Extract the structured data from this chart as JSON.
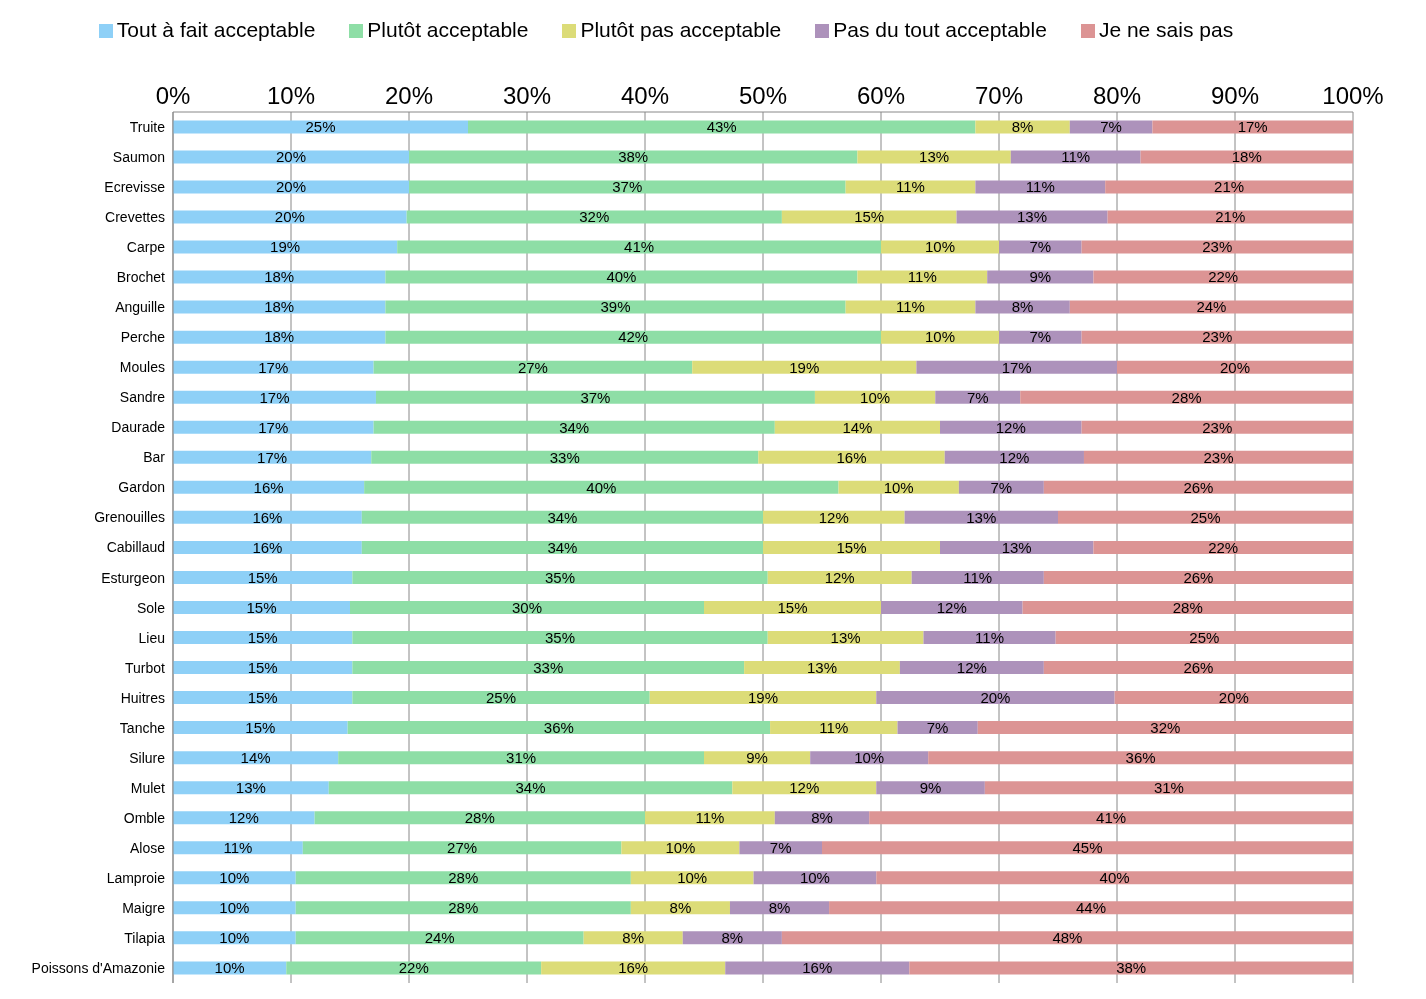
{
  "chart_data": {
    "type": "bar",
    "orientation": "horizontal",
    "stacked": true,
    "data_labels": false,
    "grid": "x",
    "legend": "top",
    "categories": [
      "Truite",
      "Saumon",
      "Ecrevisse",
      "Crevettes",
      "Carpe",
      "Brochet",
      "Anguille",
      "Perche",
      "Moules",
      "Sandre",
      "Daurade",
      "Bar",
      "Gardon",
      "Grenouilles",
      "Cabillaud",
      "Esturgeon",
      "Sole",
      "Lieu",
      "Turbot",
      "Huitres",
      "Tanche",
      "Silure",
      "Mulet",
      "Omble",
      "Alose",
      "Lamproie",
      "Maigre",
      "Tilapia",
      "Poissons d'Amazonie"
    ],
    "xlim": [
      0,
      100
    ],
    "xticks": [
      {
        "value": 0,
        "label": "0%"
      },
      {
        "value": 10,
        "label": "10%"
      },
      {
        "value": 20,
        "label": "20%"
      },
      {
        "value": 30,
        "label": "30%"
      },
      {
        "value": 40,
        "label": "40%"
      },
      {
        "value": 50,
        "label": "50%"
      },
      {
        "value": 60,
        "label": "60%"
      },
      {
        "value": 70,
        "label": "70%"
      },
      {
        "value": 80,
        "label": "80%"
      },
      {
        "value": 90,
        "label": "90%"
      },
      {
        "value": 100,
        "label": "100%"
      }
    ],
    "series": [
      {
        "name": "Tout à fait acceptable",
        "color": "#8ed0f7",
        "values": [
          25,
          20,
          20,
          19.8,
          19,
          18,
          18,
          18,
          17,
          17.2,
          17,
          16.8,
          16.2,
          16,
          16,
          15.2,
          15,
          15.2,
          15.2,
          15.2,
          14.8,
          14,
          13.2,
          12,
          11,
          10.4,
          10.4,
          10.4,
          9.6
        ],
        "value_labels": [
          "25%",
          "20%",
          "20%",
          "20%",
          "19%",
          "18%",
          "18%",
          "18%",
          "17%",
          "17%",
          "17%",
          "17%",
          "16%",
          "16%",
          "16%",
          "15%",
          "15%",
          "15%",
          "15%",
          "15%",
          "15%",
          "14%",
          "13%",
          "12%",
          "11%",
          "10%",
          "10%",
          "10%",
          "10%"
        ]
      },
      {
        "name": "Plutôt acceptable",
        "color": "#8edea6",
        "values": [
          43,
          38,
          37,
          31.8,
          41,
          40,
          39,
          42,
          27,
          37.2,
          34,
          32.8,
          40.2,
          34,
          34,
          35.2,
          30,
          35.2,
          33.2,
          25.2,
          35.8,
          31,
          34.2,
          28,
          27,
          28.4,
          28.4,
          24.4,
          21.6
        ],
        "value_labels": [
          "43%",
          "38%",
          "37%",
          "32%",
          "41%",
          "40%",
          "39%",
          "42%",
          "27%",
          "37%",
          "34%",
          "33%",
          "40%",
          "34%",
          "34%",
          "35%",
          "30%",
          "35%",
          "33%",
          "25%",
          "36%",
          "31%",
          "34%",
          "28%",
          "27%",
          "28%",
          "28%",
          "24%",
          "22%"
        ]
      },
      {
        "name": "Plutôt pas acceptable",
        "color": "#dcdc78",
        "values": [
          8,
          13,
          11,
          14.8,
          10,
          11,
          11,
          10,
          19,
          10.2,
          14,
          15.8,
          10.2,
          12,
          15,
          12.2,
          15,
          13.2,
          13.2,
          19.2,
          10.8,
          9,
          12.2,
          11,
          10,
          10.4,
          8.4,
          8.4,
          15.6
        ],
        "value_labels": [
          "8%",
          "13%",
          "11%",
          "15%",
          "10%",
          "11%",
          "11%",
          "10%",
          "19%",
          "10%",
          "14%",
          "16%",
          "10%",
          "12%",
          "15%",
          "12%",
          "15%",
          "13%",
          "13%",
          "19%",
          "11%",
          "9%",
          "12%",
          "11%",
          "10%",
          "10%",
          "8%",
          "8%",
          "16%"
        ]
      },
      {
        "name": "Pas du tout acceptable",
        "color": "#ad92bb",
        "values": [
          7,
          11,
          11,
          12.8,
          7,
          9,
          8,
          7,
          17,
          7.2,
          12,
          11.8,
          7.2,
          13,
          13,
          11.2,
          12,
          11.2,
          12.2,
          20.2,
          6.8,
          10,
          9.2,
          8,
          7,
          10.4,
          8.4,
          8.4,
          15.6
        ],
        "value_labels": [
          "7%",
          "11%",
          "11%",
          "13%",
          "7%",
          "9%",
          "8%",
          "7%",
          "17%",
          "7%",
          "12%",
          "12%",
          "7%",
          "13%",
          "13%",
          "11%",
          "12%",
          "11%",
          "12%",
          "20%",
          "7%",
          "10%",
          "9%",
          "8%",
          "7%",
          "10%",
          "8%",
          "8%",
          "16%"
        ]
      },
      {
        "name": "Je ne sais pas",
        "color": "#dc9494",
        "values": [
          17,
          18,
          21,
          20.8,
          23,
          22,
          24,
          23,
          20,
          28.2,
          23,
          22.8,
          26.2,
          25,
          22,
          26.2,
          28,
          25.2,
          26.2,
          20.2,
          31.8,
          36,
          31.2,
          41,
          45,
          40.4,
          44.4,
          48.4,
          37.6
        ],
        "value_labels": [
          "17%",
          "18%",
          "21%",
          "21%",
          "23%",
          "22%",
          "24%",
          "23%",
          "20%",
          "28%",
          "23%",
          "23%",
          "26%",
          "25%",
          "22%",
          "26%",
          "28%",
          "25%",
          "26%",
          "20%",
          "32%",
          "36%",
          "31%",
          "41%",
          "45%",
          "40%",
          "44%",
          "48%",
          "38%"
        ]
      }
    ]
  }
}
